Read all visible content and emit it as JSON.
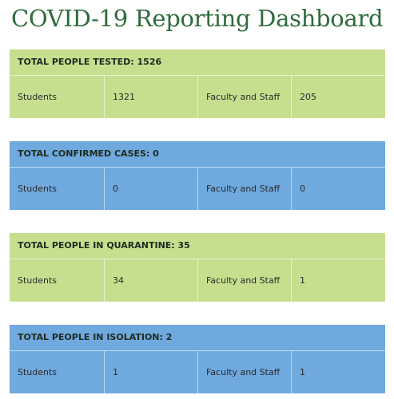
{
  "header": {
    "title": "COVID-19 Reporting Dashboard"
  },
  "sections": [
    {
      "heading": "TOTAL PEOPLE TESTED: 1526",
      "cells": [
        "Students",
        1321,
        "Faculty and Staff",
        205
      ]
    },
    {
      "heading": "TOTAL CONFIRMED CASES: 0",
      "cells": [
        "Students",
        0,
        "Faculty and Staff",
        0
      ]
    },
    {
      "heading": "TOTAL PEOPLE IN QUARANTINE: 35",
      "cells": [
        "Students",
        34,
        "Faculty and Staff",
        1
      ]
    },
    {
      "heading": "TOTAL PEOPLE IN ISOLATION: 2",
      "cells": [
        "Students",
        1,
        "Faculty and Staff",
        1
      ]
    }
  ]
}
